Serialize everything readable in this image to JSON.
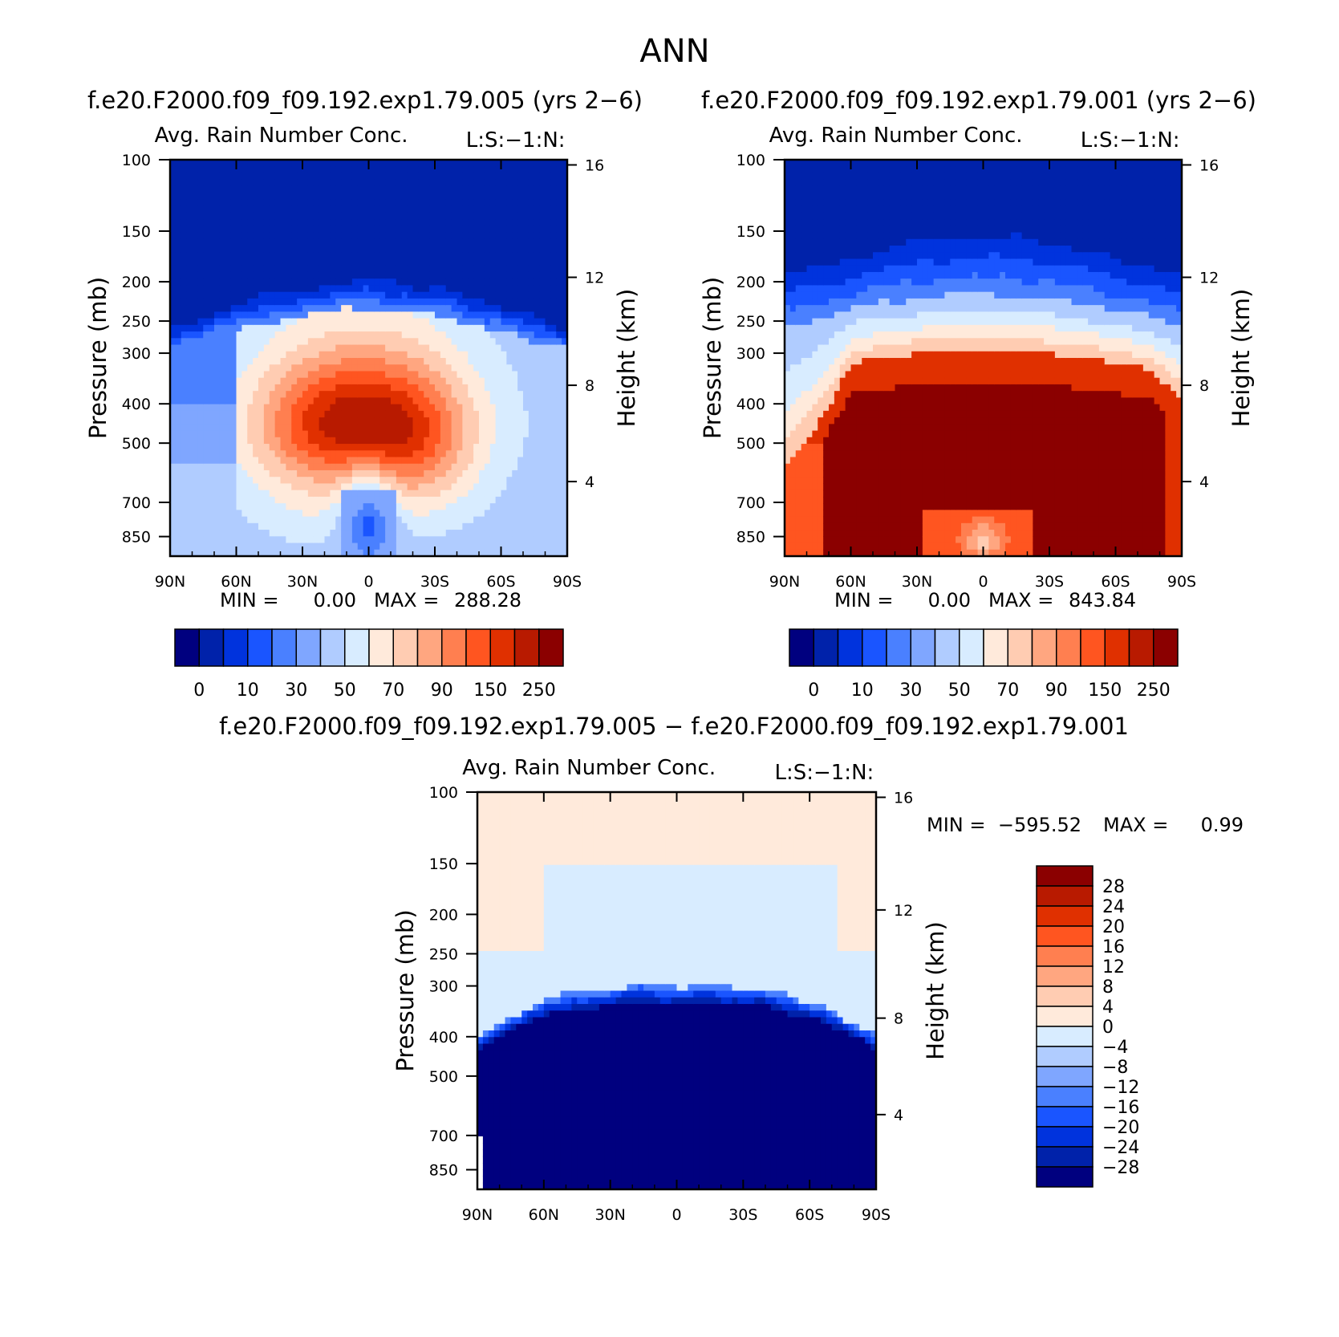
{
  "title": "ANN",
  "colors": {
    "scale": [
      "#00007f",
      "#0022aa",
      "#0033dd",
      "#1a55ff",
      "#4a80ff",
      "#7fa6ff",
      "#b0ccff",
      "#d8ecff",
      "#ffeadb",
      "#ffccb2",
      "#ffa680",
      "#ff7f50",
      "#ff5520",
      "#e03000",
      "#b81a00",
      "#8b0000"
    ]
  },
  "chart_data": [
    {
      "type": "heatmap",
      "case": "f.e20.F2000.f09_f09.192.exp1.79.005 (yrs 2−6)",
      "title": "Avg. Rain Number Conc.",
      "units_label": "L:S:−1:N:",
      "ylabel": "Pressure (mb)",
      "ylabel_right": "Height (km)",
      "xlabel": "",
      "x_ticks": [
        "90N",
        "60N",
        "30N",
        "0",
        "30S",
        "60S",
        "90S"
      ],
      "y_ticks": [
        "100",
        "150",
        "200",
        "250",
        "300",
        "400",
        "500",
        "700",
        "850"
      ],
      "y_ticks_right": [
        "16",
        "12",
        "8",
        "4"
      ],
      "ylim": [
        100,
        950
      ],
      "stats": {
        "min_label": "MIN =",
        "min_value": "0.00",
        "max_label": "MAX =",
        "max_value": "288.28"
      },
      "colorbar_labels": [
        "0",
        "10",
        "30",
        "50",
        "70",
        "90",
        "150",
        "250"
      ],
      "pattern": "moderate"
    },
    {
      "type": "heatmap",
      "case": "f.e20.F2000.f09_f09.192.exp1.79.001 (yrs 2−6)",
      "title": "Avg. Rain Number Conc.",
      "units_label": "L:S:−1:N:",
      "ylabel": "Pressure (mb)",
      "ylabel_right": "Height (km)",
      "xlabel": "",
      "x_ticks": [
        "90N",
        "60N",
        "30N",
        "0",
        "30S",
        "60S",
        "90S"
      ],
      "y_ticks": [
        "100",
        "150",
        "200",
        "250",
        "300",
        "400",
        "500",
        "700",
        "850"
      ],
      "y_ticks_right": [
        "16",
        "12",
        "8",
        "4"
      ],
      "ylim": [
        100,
        950
      ],
      "stats": {
        "min_label": "MIN =",
        "min_value": "0.00",
        "max_label": "MAX =",
        "max_value": "843.84"
      },
      "colorbar_labels": [
        "0",
        "10",
        "30",
        "50",
        "70",
        "90",
        "150",
        "250"
      ],
      "pattern": "strong"
    },
    {
      "type": "heatmap",
      "case": "f.e20.F2000.f09_f09.192.exp1.79.005 − f.e20.F2000.f09_f09.192.exp1.79.001",
      "title": "Avg. Rain Number Conc.",
      "units_label": "L:S:−1:N:",
      "ylabel": "Pressure (mb)",
      "ylabel_right": "Height (km)",
      "xlabel": "",
      "x_ticks": [
        "90N",
        "60N",
        "30N",
        "0",
        "30S",
        "60S",
        "90S"
      ],
      "y_ticks": [
        "100",
        "150",
        "200",
        "250",
        "300",
        "400",
        "500",
        "700",
        "850"
      ],
      "y_ticks_right": [
        "16",
        "12",
        "8",
        "4"
      ],
      "ylim": [
        100,
        950
      ],
      "stats": {
        "min_label": "MIN =",
        "min_value": "−595.52",
        "max_label": "MAX =",
        "max_value": "0.99"
      },
      "colorbar_labels": [
        "28",
        "24",
        "20",
        "16",
        "12",
        "8",
        "4",
        "0",
        "−4",
        "−8",
        "−12",
        "−16",
        "−20",
        "−24",
        "−28"
      ],
      "pattern": "difference"
    }
  ]
}
